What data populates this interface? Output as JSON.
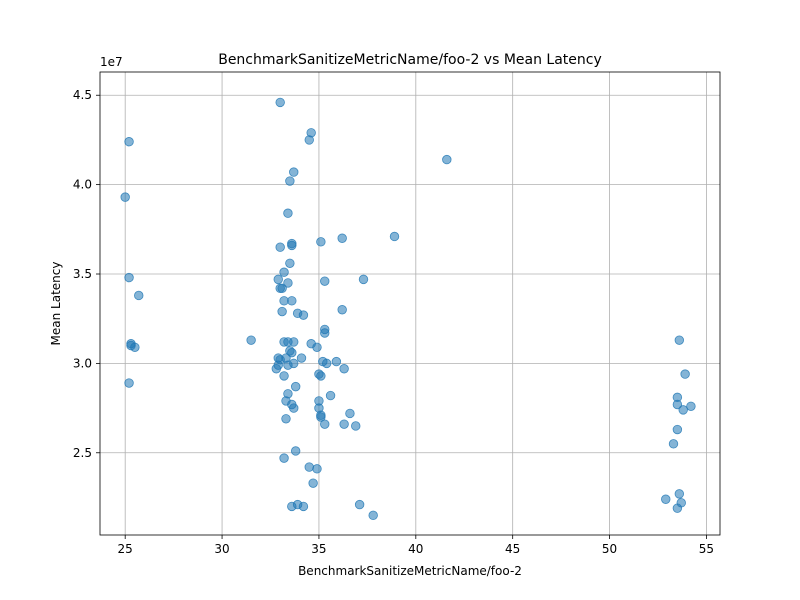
{
  "chart_data": {
    "type": "scatter",
    "title": "BenchmarkSanitizeMetricName/foo-2 vs Mean Latency",
    "xlabel": "BenchmarkSanitizeMetricName/foo-2",
    "ylabel": "Mean Latency",
    "y_offset_label": "1e7",
    "xlim": [
      23.7,
      55.7
    ],
    "ylim": [
      2.04,
      4.63
    ],
    "x_ticks": [
      25,
      30,
      35,
      40,
      45,
      50,
      55
    ],
    "x_tick_labels": [
      "25",
      "30",
      "35",
      "40",
      "45",
      "50",
      "55"
    ],
    "y_ticks": [
      2.5,
      3.0,
      3.5,
      4.0,
      4.5
    ],
    "y_tick_labels": [
      "2.5",
      "3.0",
      "3.5",
      "4.0",
      "4.5"
    ],
    "y_unit_scale": 10000000,
    "grid": true,
    "marker_color": "#1f77b4",
    "marker_alpha": 0.55,
    "points": [
      [
        25.2,
        4.24
      ],
      [
        25.0,
        3.93
      ],
      [
        25.2,
        3.48
      ],
      [
        25.7,
        3.38
      ],
      [
        25.3,
        3.11
      ],
      [
        25.3,
        3.1
      ],
      [
        25.5,
        3.09
      ],
      [
        25.2,
        2.89
      ],
      [
        33.0,
        4.46
      ],
      [
        34.6,
        4.29
      ],
      [
        34.5,
        4.25
      ],
      [
        33.7,
        4.07
      ],
      [
        33.5,
        4.02
      ],
      [
        33.4,
        3.84
      ],
      [
        33.6,
        3.67
      ],
      [
        33.6,
        3.66
      ],
      [
        33.0,
        3.65
      ],
      [
        35.1,
        3.68
      ],
      [
        36.2,
        3.7
      ],
      [
        38.9,
        3.71
      ],
      [
        41.6,
        4.14
      ],
      [
        33.5,
        3.56
      ],
      [
        33.2,
        3.51
      ],
      [
        32.9,
        3.47
      ],
      [
        33.4,
        3.45
      ],
      [
        35.3,
        3.46
      ],
      [
        37.3,
        3.47
      ],
      [
        33.0,
        3.42
      ],
      [
        33.1,
        3.42
      ],
      [
        33.2,
        3.35
      ],
      [
        33.6,
        3.35
      ],
      [
        33.1,
        3.29
      ],
      [
        33.9,
        3.28
      ],
      [
        34.2,
        3.27
      ],
      [
        36.2,
        3.3
      ],
      [
        31.5,
        3.13
      ],
      [
        33.2,
        3.12
      ],
      [
        33.4,
        3.12
      ],
      [
        33.7,
        3.12
      ],
      [
        34.6,
        3.11
      ],
      [
        35.3,
        3.17
      ],
      [
        35.3,
        3.19
      ],
      [
        34.9,
        3.09
      ],
      [
        33.5,
        3.07
      ],
      [
        33.6,
        3.06
      ],
      [
        32.9,
        3.03
      ],
      [
        33.0,
        3.02
      ],
      [
        33.3,
        3.03
      ],
      [
        34.1,
        3.03
      ],
      [
        35.2,
        3.01
      ],
      [
        35.4,
        3.0
      ],
      [
        35.9,
        3.01
      ],
      [
        33.7,
        3.0
      ],
      [
        32.9,
        2.99
      ],
      [
        32.8,
        2.97
      ],
      [
        33.4,
        2.99
      ],
      [
        33.2,
        2.93
      ],
      [
        35.0,
        2.94
      ],
      [
        35.1,
        2.93
      ],
      [
        36.3,
        2.97
      ],
      [
        33.8,
        2.87
      ],
      [
        33.4,
        2.83
      ],
      [
        35.6,
        2.82
      ],
      [
        33.3,
        2.79
      ],
      [
        33.6,
        2.77
      ],
      [
        33.7,
        2.75
      ],
      [
        35.0,
        2.79
      ],
      [
        35.0,
        2.75
      ],
      [
        35.1,
        2.71
      ],
      [
        35.1,
        2.7
      ],
      [
        36.6,
        2.72
      ],
      [
        33.3,
        2.69
      ],
      [
        35.3,
        2.66
      ],
      [
        36.3,
        2.66
      ],
      [
        36.9,
        2.65
      ],
      [
        33.8,
        2.51
      ],
      [
        33.2,
        2.47
      ],
      [
        34.5,
        2.42
      ],
      [
        34.9,
        2.41
      ],
      [
        34.7,
        2.33
      ],
      [
        33.6,
        2.2
      ],
      [
        33.9,
        2.21
      ],
      [
        34.2,
        2.2
      ],
      [
        37.1,
        2.21
      ],
      [
        37.8,
        2.15
      ],
      [
        53.6,
        3.13
      ],
      [
        53.9,
        2.94
      ],
      [
        53.5,
        2.81
      ],
      [
        53.5,
        2.77
      ],
      [
        54.2,
        2.76
      ],
      [
        53.8,
        2.74
      ],
      [
        53.5,
        2.63
      ],
      [
        53.3,
        2.55
      ],
      [
        53.6,
        2.27
      ],
      [
        52.9,
        2.24
      ],
      [
        53.7,
        2.22
      ],
      [
        53.5,
        2.19
      ]
    ]
  }
}
